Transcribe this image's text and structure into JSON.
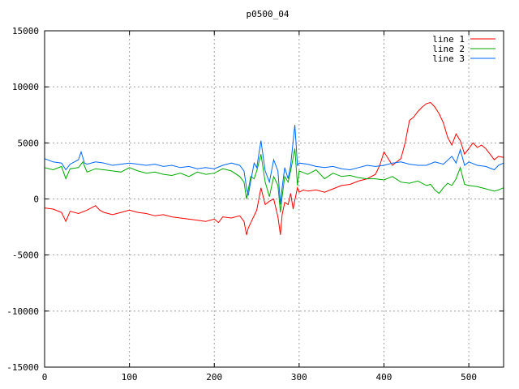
{
  "chart_data": {
    "type": "line",
    "title": "p0500_04",
    "xlabel": "",
    "ylabel": "",
    "xlim": [
      0,
      541
    ],
    "ylim": [
      -15000,
      15000
    ],
    "xticks": [
      0,
      100,
      200,
      300,
      400,
      500
    ],
    "yticks": [
      -15000,
      -10000,
      -5000,
      0,
      5000,
      10000,
      15000
    ],
    "grid": true,
    "legend_position": "top-right",
    "series": [
      {
        "name": "line 1",
        "color": "#ff0000",
        "x": [
          0,
          10,
          20,
          25,
          30,
          40,
          50,
          60,
          65,
          70,
          80,
          90,
          100,
          110,
          120,
          130,
          140,
          150,
          160,
          170,
          180,
          190,
          200,
          205,
          210,
          220,
          230,
          235,
          238,
          240,
          245,
          250,
          255,
          260,
          265,
          270,
          275,
          278,
          280,
          283,
          287,
          290,
          293,
          295,
          298,
          300,
          305,
          310,
          320,
          330,
          340,
          350,
          360,
          370,
          380,
          390,
          395,
          400,
          410,
          420,
          425,
          430,
          435,
          440,
          445,
          450,
          455,
          460,
          465,
          470,
          475,
          480,
          485,
          490,
          495,
          500,
          505,
          510,
          515,
          520,
          525,
          530,
          535,
          541
        ],
        "y": [
          -800,
          -900,
          -1200,
          -2000,
          -1100,
          -1300,
          -1000,
          -600,
          -1000,
          -1200,
          -1400,
          -1200,
          -1000,
          -1200,
          -1300,
          -1500,
          -1400,
          -1600,
          -1700,
          -1800,
          -1900,
          -2000,
          -1800,
          -2100,
          -1600,
          -1700,
          -1500,
          -2000,
          -3200,
          -2600,
          -1800,
          -1000,
          1000,
          -500,
          -200,
          0,
          -1600,
          -3200,
          -1400,
          -300,
          -500,
          500,
          -900,
          -100,
          1000,
          600,
          800,
          700,
          800,
          600,
          900,
          1200,
          1300,
          1600,
          1800,
          2200,
          3000,
          4200,
          3000,
          3600,
          5000,
          7000,
          7300,
          7800,
          8200,
          8500,
          8600,
          8200,
          7600,
          6800,
          5500,
          4800,
          5800,
          5200,
          4000,
          4500,
          5000,
          4600,
          4800,
          4500,
          4000,
          3500,
          3800,
          3700
        ]
      },
      {
        "name": "line 2",
        "color": "#00aa00",
        "x": [
          0,
          10,
          20,
          25,
          30,
          40,
          45,
          50,
          60,
          70,
          80,
          90,
          100,
          110,
          120,
          130,
          140,
          150,
          160,
          170,
          180,
          190,
          200,
          210,
          220,
          230,
          235,
          238,
          240,
          243,
          247,
          250,
          255,
          260,
          265,
          270,
          275,
          278,
          280,
          283,
          287,
          290,
          295,
          298,
          300,
          310,
          320,
          330,
          340,
          350,
          360,
          370,
          380,
          390,
          400,
          410,
          420,
          430,
          440,
          450,
          455,
          460,
          465,
          470,
          475,
          480,
          485,
          490,
          495,
          500,
          510,
          520,
          530,
          535,
          541
        ],
        "y": [
          2800,
          2600,
          2900,
          1800,
          2700,
          2800,
          3300,
          2400,
          2700,
          2600,
          2500,
          2400,
          2800,
          2500,
          2300,
          2400,
          2200,
          2100,
          2300,
          2000,
          2400,
          2200,
          2300,
          2700,
          2500,
          2000,
          1500,
          0,
          800,
          2000,
          1800,
          2500,
          4000,
          1500,
          200,
          2000,
          1200,
          -1200,
          200,
          2000,
          1500,
          2500,
          4500,
          1200,
          2500,
          2200,
          2600,
          1800,
          2300,
          2000,
          2100,
          1900,
          1800,
          1800,
          1700,
          2000,
          1500,
          1400,
          1600,
          1200,
          1300,
          800,
          500,
          1000,
          1400,
          1200,
          1800,
          2800,
          1300,
          1200,
          1100,
          900,
          700,
          800,
          1000
        ]
      },
      {
        "name": "line 3",
        "color": "#0066ff",
        "x": [
          0,
          10,
          20,
          25,
          30,
          40,
          43,
          47,
          50,
          60,
          70,
          80,
          90,
          100,
          110,
          120,
          130,
          140,
          150,
          160,
          170,
          180,
          190,
          200,
          210,
          220,
          230,
          235,
          238,
          240,
          243,
          247,
          250,
          255,
          260,
          265,
          270,
          275,
          278,
          280,
          283,
          287,
          290,
          295,
          298,
          300,
          310,
          320,
          330,
          340,
          350,
          360,
          370,
          380,
          390,
          400,
          410,
          420,
          430,
          440,
          450,
          460,
          470,
          480,
          485,
          490,
          495,
          500,
          510,
          520,
          530,
          535,
          541
        ],
        "y": [
          3600,
          3300,
          3200,
          2600,
          3100,
          3500,
          4200,
          3200,
          3100,
          3300,
          3200,
          3000,
          3100,
          3200,
          3100,
          3000,
          3100,
          2900,
          3000,
          2800,
          2900,
          2700,
          2800,
          2700,
          3000,
          3200,
          3000,
          2500,
          1000,
          300,
          1600,
          3200,
          2800,
          5200,
          2500,
          1500,
          3500,
          2500,
          -500,
          1000,
          2800,
          1800,
          3000,
          6600,
          3000,
          3200,
          3100,
          2900,
          2800,
          2900,
          2700,
          2600,
          2800,
          3000,
          2900,
          3000,
          3200,
          3300,
          3100,
          3000,
          3000,
          3300,
          3100,
          3800,
          3200,
          4400,
          3000,
          3300,
          3000,
          2900,
          2600,
          3000,
          3200
        ]
      }
    ]
  }
}
